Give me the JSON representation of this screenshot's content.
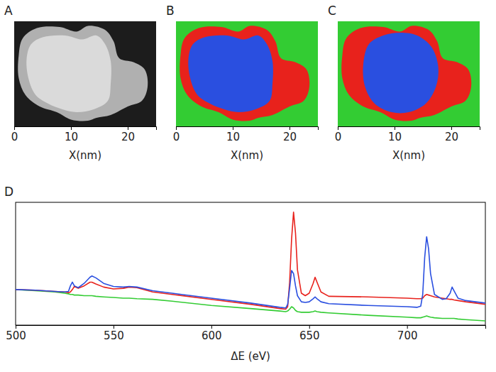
{
  "chart_data": [
    {
      "type": "image",
      "title": "A",
      "x_label": "X(nm)",
      "xlim": [
        0,
        25
      ],
      "ylim": [
        0,
        18.5
      ],
      "xticks": [
        0,
        10,
        20
      ],
      "tick_labels": "x",
      "regions": [
        {
          "color": "#1c1c1c",
          "points": [
            [
              0,
              0
            ],
            [
              25,
              0
            ],
            [
              25,
              18.5
            ],
            [
              0,
              18.5
            ]
          ]
        },
        {
          "color": "#b0b0b0",
          "points": [
            [
              1.5,
              3
            ],
            [
              4,
              1.2
            ],
            [
              8,
              1.0
            ],
            [
              11,
              1.8
            ],
            [
              13,
              0.8
            ],
            [
              16,
              1.5
            ],
            [
              17.5,
              3.5
            ],
            [
              18.5,
              6.5
            ],
            [
              21,
              7.2
            ],
            [
              23,
              8.5
            ],
            [
              23.5,
              11.5
            ],
            [
              22.5,
              14
            ],
            [
              20,
              15
            ],
            [
              17,
              16.5
            ],
            [
              14.5,
              17
            ],
            [
              13,
              17.5
            ],
            [
              10,
              17.3
            ],
            [
              7.5,
              16
            ],
            [
              4.5,
              15
            ],
            [
              2,
              13
            ],
            [
              0.8,
              10
            ],
            [
              0.8,
              6
            ]
          ]
        },
        {
          "color": "#dadada",
          "points": [
            [
              3,
              4
            ],
            [
              5,
              2.8
            ],
            [
              9,
              2.5
            ],
            [
              12,
              3.2
            ],
            [
              14.5,
              2.5
            ],
            [
              16,
              4
            ],
            [
              17,
              7
            ],
            [
              17,
              11
            ],
            [
              16.5,
              14
            ],
            [
              14,
              15.5
            ],
            [
              11,
              16
            ],
            [
              8.5,
              15.5
            ],
            [
              6,
              14.5
            ],
            [
              3.8,
              13
            ],
            [
              2.5,
              10
            ],
            [
              2.2,
              6.5
            ]
          ]
        }
      ]
    },
    {
      "type": "image",
      "title": "B",
      "x_label": "X(nm)",
      "xlim": [
        0,
        25
      ],
      "ylim": [
        0,
        18.5
      ],
      "xticks": [
        0,
        10,
        20
      ],
      "tick_labels": "x",
      "regions": [
        {
          "color": "#33cc33",
          "points": [
            [
              0,
              0
            ],
            [
              25,
              0
            ],
            [
              25,
              18.5
            ],
            [
              0,
              18.5
            ]
          ]
        },
        {
          "color": "#e8221c",
          "points": [
            [
              1.5,
              3
            ],
            [
              4,
              1.2
            ],
            [
              8,
              1.0
            ],
            [
              11,
              1.8
            ],
            [
              13,
              0.8
            ],
            [
              16,
              1.5
            ],
            [
              17.5,
              3.5
            ],
            [
              18.5,
              6.5
            ],
            [
              21,
              7.2
            ],
            [
              23,
              8.5
            ],
            [
              23.5,
              11.5
            ],
            [
              22.5,
              14
            ],
            [
              20,
              15
            ],
            [
              17,
              16.5
            ],
            [
              14.5,
              17
            ],
            [
              13,
              17.5
            ],
            [
              10,
              17.3
            ],
            [
              7.5,
              16
            ],
            [
              4.5,
              15
            ],
            [
              2,
              13
            ],
            [
              0.8,
              10
            ],
            [
              0.8,
              6
            ]
          ]
        },
        {
          "color": "#2a4fe0",
          "points": [
            [
              3,
              4
            ],
            [
              5,
              2.8
            ],
            [
              9,
              2.5
            ],
            [
              12,
              3.2
            ],
            [
              14.5,
              2.5
            ],
            [
              16,
              4
            ],
            [
              17,
              7
            ],
            [
              17,
              11
            ],
            [
              16.5,
              14
            ],
            [
              14,
              15.5
            ],
            [
              11,
              16
            ],
            [
              8.5,
              15.5
            ],
            [
              6,
              14.5
            ],
            [
              3.8,
              13
            ],
            [
              2.5,
              10
            ],
            [
              2.2,
              6.5
            ]
          ]
        }
      ]
    },
    {
      "type": "image",
      "title": "C",
      "x_label": "X(nm)",
      "xlim": [
        0,
        25
      ],
      "ylim": [
        0,
        18.5
      ],
      "xticks": [
        0,
        10,
        20
      ],
      "tick_labels": "x",
      "regions": [
        {
          "color": "#33cc33",
          "points": [
            [
              0,
              0
            ],
            [
              25,
              0
            ],
            [
              25,
              18.5
            ],
            [
              0,
              18.5
            ]
          ]
        },
        {
          "color": "#e8221c",
          "points": [
            [
              1.5,
              3
            ],
            [
              4,
              1.2
            ],
            [
              8,
              1.0
            ],
            [
              11,
              1.8
            ],
            [
              13,
              0.8
            ],
            [
              16,
              1.5
            ],
            [
              17.5,
              3.5
            ],
            [
              18.5,
              6.5
            ],
            [
              21,
              7.2
            ],
            [
              23,
              8.5
            ],
            [
              23.5,
              11.5
            ],
            [
              22.5,
              14
            ],
            [
              20,
              15
            ],
            [
              17,
              16.5
            ],
            [
              14.5,
              17
            ],
            [
              13,
              17.5
            ],
            [
              10,
              17.3
            ],
            [
              7.5,
              16
            ],
            [
              4.5,
              15
            ],
            [
              2,
              13
            ],
            [
              0.8,
              10
            ],
            [
              0.8,
              6
            ]
          ]
        },
        {
          "color": "#2a4fe0",
          "points": [
            [
              5.5,
              4
            ],
            [
              8,
              2.5
            ],
            [
              11,
              2
            ],
            [
              14,
              2.5
            ],
            [
              16.5,
              4.5
            ],
            [
              17.7,
              8
            ],
            [
              17.3,
              11.5
            ],
            [
              15.5,
              14.5
            ],
            [
              12.5,
              16
            ],
            [
              9.5,
              16
            ],
            [
              6.5,
              14.5
            ],
            [
              4.8,
              11.5
            ],
            [
              4.5,
              7.5
            ]
          ]
        }
      ]
    },
    {
      "type": "line",
      "title": "D",
      "x_label": "ΔE (eV)",
      "xlim": [
        500,
        740
      ],
      "ylim": [
        0,
        100
      ],
      "xticks": [
        500,
        550,
        600,
        650,
        700
      ],
      "tick_labels": "x",
      "x": [
        500,
        510,
        520,
        525,
        527,
        528,
        529,
        530,
        532,
        535,
        538,
        539,
        541,
        545,
        550,
        555,
        558,
        562,
        570,
        580,
        600,
        620,
        635,
        638,
        639,
        640,
        641,
        642,
        643,
        644,
        646,
        648,
        650,
        652,
        653,
        654,
        656,
        660,
        680,
        700,
        705,
        707,
        708,
        709,
        710,
        711,
        712,
        714,
        718,
        720,
        722,
        723,
        724,
        726,
        730,
        740
      ],
      "series": [
        {
          "color": "#33cc33",
          "values": [
            29,
            28,
            27,
            26,
            25.5,
            25,
            25,
            24.5,
            24.5,
            24,
            24,
            24,
            23.5,
            23,
            22.5,
            22,
            22,
            21.5,
            21,
            19.5,
            16,
            13.5,
            11.5,
            11,
            11.5,
            13,
            15,
            14,
            12,
            11,
            10.5,
            10.5,
            10.5,
            11,
            11.5,
            11,
            10.5,
            10,
            8,
            6.5,
            6,
            6,
            6.5,
            7,
            7.5,
            7,
            6.5,
            6,
            5.5,
            5.5,
            5.5,
            5.5,
            5.5,
            5,
            4.5,
            3.5
          ]
        },
        {
          "color": "#e8221c",
          "values": [
            29,
            28.5,
            27.5,
            27,
            26.5,
            27,
            29,
            31.5,
            30,
            32,
            35,
            35,
            33.5,
            31,
            29.5,
            30,
            31,
            30.5,
            27,
            25,
            21,
            17,
            13.5,
            13,
            15,
            35,
            70,
            92,
            75,
            45,
            26,
            24,
            26,
            34,
            39,
            35,
            27,
            23.5,
            23,
            22,
            21.5,
            21.5,
            22,
            24,
            25,
            24.5,
            24,
            23,
            22,
            21.5,
            21,
            21,
            20.5,
            20,
            19,
            17
          ]
        },
        {
          "color": "#2a4fe0",
          "values": [
            29,
            28.5,
            27.5,
            27,
            27.5,
            32,
            35,
            32,
            30.5,
            34,
            39,
            40,
            38.5,
            34,
            31.5,
            31,
            31.5,
            31,
            28,
            26,
            22,
            18,
            14.5,
            14,
            17,
            30,
            44.5,
            42,
            32,
            24,
            19,
            18.5,
            19,
            21.5,
            23,
            21.5,
            19,
            17.5,
            16,
            15,
            14.5,
            15.5,
            25,
            55,
            72,
            62,
            42,
            25,
            21,
            21.5,
            26,
            31,
            28,
            22,
            20,
            18
          ]
        }
      ]
    }
  ]
}
